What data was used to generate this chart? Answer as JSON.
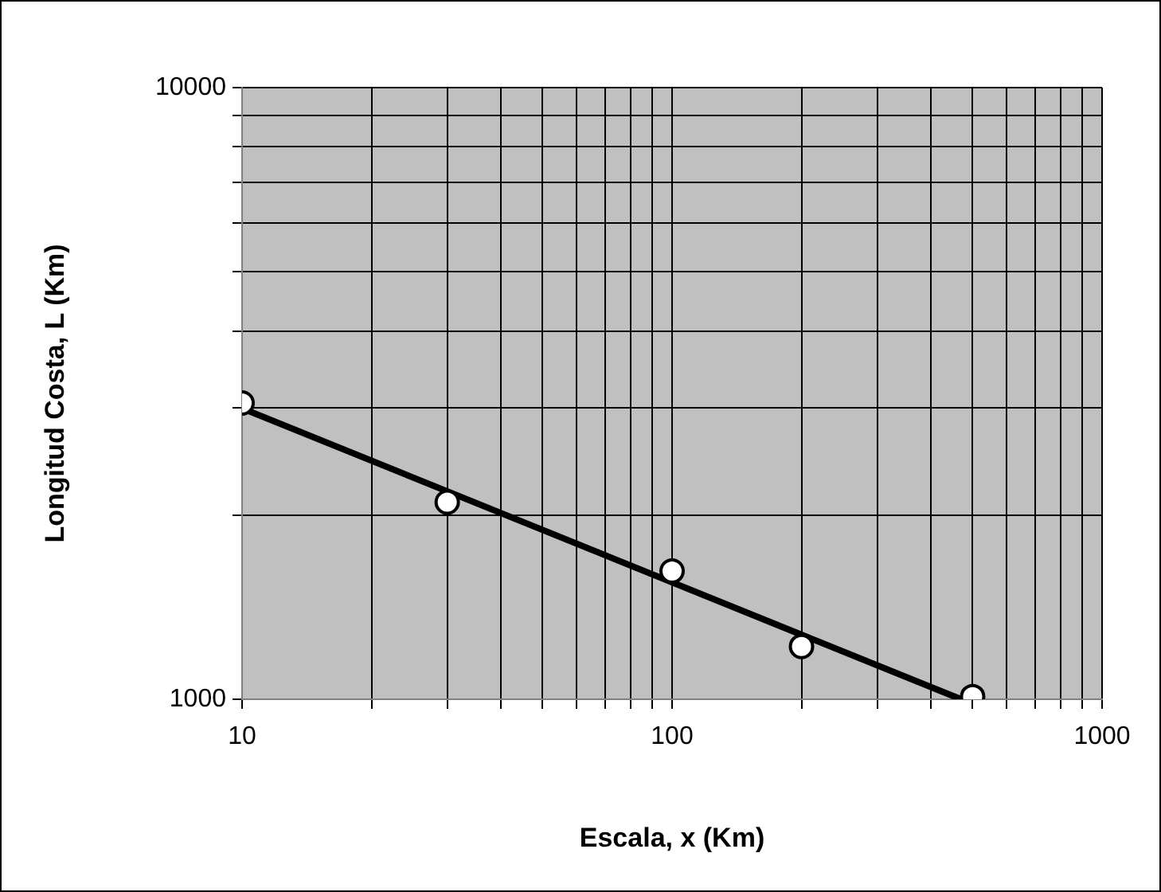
{
  "chart_data": {
    "type": "scatter",
    "xlabel": "Escala, x (Km)",
    "ylabel": "Longitud Costa, L (Km)",
    "log": "xy",
    "grid": true,
    "legend": false,
    "marker": "circle",
    "xlim": [
      10,
      1000
    ],
    "ylim": [
      1000,
      10000
    ],
    "xticks": [
      10,
      {
        "value": 20,
        "label": null
      },
      {
        "value": 30,
        "label": null
      },
      {
        "value": 40,
        "label": null
      },
      {
        "value": 50,
        "label": null
      },
      {
        "value": 60,
        "label": null
      },
      {
        "value": 70,
        "label": null
      },
      {
        "value": 80,
        "label": null
      },
      {
        "value": 90,
        "label": null
      },
      100,
      {
        "value": 200,
        "label": null
      },
      {
        "value": 300,
        "label": null
      },
      {
        "value": 400,
        "label": null
      },
      {
        "value": 500,
        "label": null
      },
      {
        "value": 600,
        "label": null
      },
      {
        "value": 700,
        "label": null
      },
      {
        "value": 800,
        "label": null
      },
      {
        "value": 900,
        "label": null
      },
      1000
    ],
    "yticks": [
      1000,
      {
        "value": 2000,
        "label": null
      },
      {
        "value": 3000,
        "label": null
      },
      {
        "value": 4000,
        "label": null
      },
      {
        "value": 5000,
        "label": null
      },
      {
        "value": 6000,
        "label": null
      },
      {
        "value": 7000,
        "label": null
      },
      {
        "value": 8000,
        "label": null
      },
      {
        "value": 9000,
        "label": null
      },
      10000
    ],
    "series": [
      {
        "type": "scatter",
        "color": "#ffffff",
        "x": [
          10,
          30,
          100,
          200,
          500
        ],
        "values": [
          3050,
          2100,
          1620,
          1220,
          1010
        ]
      },
      {
        "type": "line",
        "color": "#000000",
        "marker": "none",
        "x": [
          10,
          470
        ],
        "values": [
          2990,
          1000
        ]
      }
    ]
  }
}
